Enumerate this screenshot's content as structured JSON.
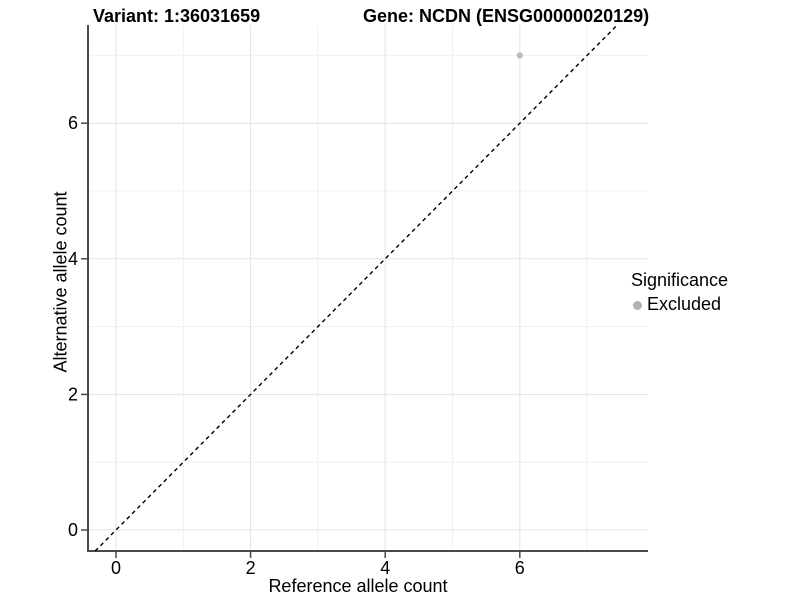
{
  "chart_data": {
    "type": "scatter",
    "titles": {
      "variant": "Variant: 1:36031659",
      "gene": "Gene: NCDN (ENSG00000020129)"
    },
    "xlabel": "Reference allele count",
    "ylabel": "Alternative allele count",
    "x_ticks": [
      0,
      2,
      4,
      6
    ],
    "y_ticks": [
      0,
      2,
      4,
      6
    ],
    "x_minor": [
      1,
      3,
      5,
      7
    ],
    "y_minor": [
      1,
      3,
      5,
      7
    ],
    "xlim": [
      -0.42,
      7.9
    ],
    "ylim": [
      -0.31,
      7.45
    ],
    "grid": "major and minor, light gray, on white background",
    "points": [
      {
        "x": 6,
        "y": 7,
        "significance": "Excluded"
      }
    ],
    "abline": {
      "slope": 1,
      "intercept": 0,
      "style": "dashed",
      "color": "#000000"
    },
    "legend": {
      "title": "Significance",
      "position": "right",
      "items": [
        {
          "label": "Excluded",
          "color": "#b3b3b3"
        }
      ]
    },
    "colors": {
      "point": "#bcbcbc",
      "grid_major": "#e3e3e3",
      "grid_minor": "#f0f0f0",
      "axis": "#4a4a4a",
      "text": "#000000",
      "background": "#ffffff"
    }
  }
}
